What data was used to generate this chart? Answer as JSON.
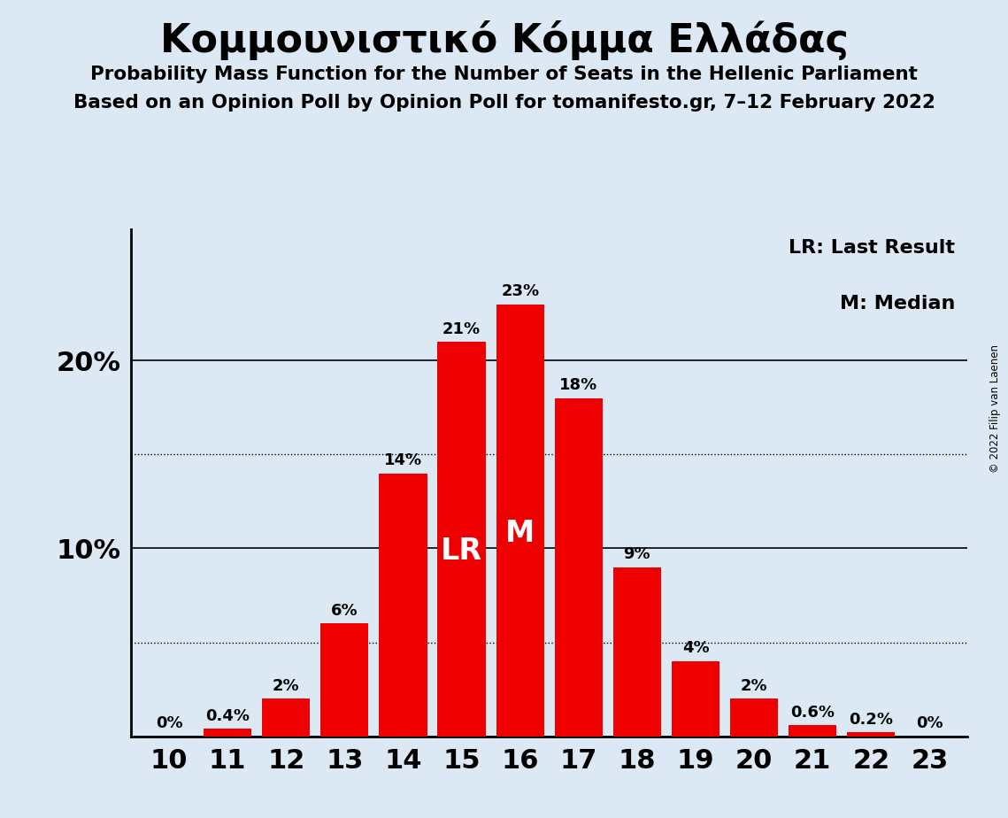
{
  "title": "Κομμουνιστικό Κόμμα Ελλάδας",
  "subtitle1": "Probability Mass Function for the Number of Seats in the Hellenic Parliament",
  "subtitle2": "Based on an Opinion Poll by Opinion Poll for tomanifesto.gr, 7–12 February 2022",
  "copyright": "© 2022 Filip van Laenen",
  "seats": [
    10,
    11,
    12,
    13,
    14,
    15,
    16,
    17,
    18,
    19,
    20,
    21,
    22,
    23
  ],
  "values": [
    0.0,
    0.4,
    2.0,
    6.0,
    14.0,
    21.0,
    23.0,
    18.0,
    9.0,
    4.0,
    2.0,
    0.6,
    0.2,
    0.0
  ],
  "bar_color": "#ee0000",
  "background_color": "#dce9f5",
  "lr_seat": 15,
  "median_seat": 16,
  "solid_lines": [
    10,
    20
  ],
  "dotted_lines": [
    5,
    15
  ],
  "ylim": [
    0,
    27
  ],
  "legend_lr": "LR: Last Result",
  "legend_m": "M: Median"
}
